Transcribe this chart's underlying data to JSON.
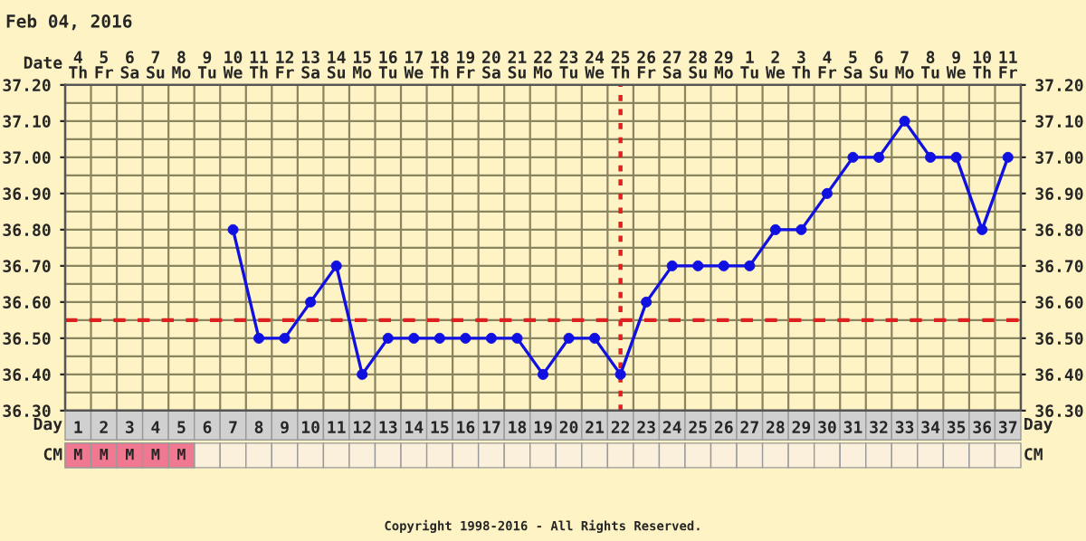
{
  "chart_data": {
    "type": "line",
    "title": "Feb 04, 2016",
    "xlabel": "Day",
    "categories": [
      "1",
      "2",
      "3",
      "4",
      "5",
      "6",
      "7",
      "8",
      "9",
      "10",
      "11",
      "12",
      "13",
      "14",
      "15",
      "16",
      "17",
      "18",
      "19",
      "20",
      "21",
      "22",
      "23",
      "24",
      "25",
      "26",
      "27",
      "28",
      "29",
      "30",
      "31",
      "32",
      "33",
      "34",
      "35",
      "36",
      "37"
    ],
    "series": [
      {
        "color": "#1010e0",
        "values": [
          null,
          null,
          null,
          null,
          null,
          null,
          36.8,
          36.5,
          36.5,
          36.6,
          36.7,
          36.4,
          36.5,
          36.5,
          36.5,
          36.5,
          36.5,
          36.5,
          36.4,
          36.5,
          36.5,
          36.4,
          36.6,
          36.7,
          36.7,
          36.7,
          36.7,
          36.8,
          36.8,
          36.9,
          37.0,
          37.0,
          37.1,
          37.0,
          37.0,
          36.8,
          37.0
        ]
      }
    ],
    "ylim": [
      36.3,
      37.2
    ],
    "yticks": [
      {
        "value": 36.3,
        "label": "36.30"
      },
      {
        "value": 36.4,
        "label": "36.40"
      },
      {
        "value": 36.5,
        "label": "36.50"
      },
      {
        "value": 36.6,
        "label": "36.60"
      },
      {
        "value": 36.7,
        "label": "36.70"
      },
      {
        "value": 36.8,
        "label": "36.80"
      },
      {
        "value": 36.9,
        "label": "36.90"
      },
      {
        "value": 37.0,
        "label": "37.00"
      },
      {
        "value": 37.1,
        "label": "37.10"
      },
      {
        "value": 37.2,
        "label": "37.20"
      }
    ],
    "y2lim": [
      36.3,
      37.2
    ],
    "y2ticks": [
      {
        "value": 36.3,
        "label": "36.30"
      },
      {
        "value": 36.4,
        "label": "36.40"
      },
      {
        "value": 36.5,
        "label": "36.50"
      },
      {
        "value": 36.6,
        "label": "36.60"
      },
      {
        "value": 36.7,
        "label": "36.70"
      },
      {
        "value": 36.8,
        "label": "36.80"
      },
      {
        "value": 36.9,
        "label": "36.90"
      },
      {
        "value": 37.0,
        "label": "37.00"
      },
      {
        "value": 37.1,
        "label": "37.10"
      },
      {
        "value": 37.2,
        "label": "37.20"
      }
    ],
    "ref_lines": [
      {
        "axis": "y",
        "value": 36.55,
        "color": "#e02020",
        "line_style": "dashed"
      },
      {
        "axis": "x",
        "value": "22",
        "color": "#e02020",
        "line_style": "dotted"
      }
    ],
    "grid": true,
    "marker": "circle",
    "line_style": "solid",
    "legend": false,
    "annotations": [
      "Date",
      "4\nTh",
      "5\nFr",
      "6\nSa",
      "7\nSu",
      "8\nMo",
      "9\nTu",
      "10\nWe",
      "11\nTh",
      "12\nFr",
      "13\nSa",
      "14\nSu",
      "15\nMo",
      "16\nTu",
      "17\nWe",
      "18\nTh",
      "19\nFr",
      "20\nSa",
      "21\nSu",
      "22\nMo",
      "23\nTu",
      "24\nWe",
      "25\nTh",
      "26\nFr",
      "27\nSa",
      "28\nSu",
      "29\nMo",
      "1\nTu",
      "2\nWe",
      "3\nTh",
      "4\nFr",
      "5\nSa",
      "6\nSu",
      "7\nMo",
      "8\nTu",
      "9\nWe",
      "10\nTh",
      "11\nFr",
      "CM",
      "M",
      "M",
      "M",
      "M",
      "M",
      "Copyright 1998-2016 - All Rights Reserved."
    ]
  }
}
